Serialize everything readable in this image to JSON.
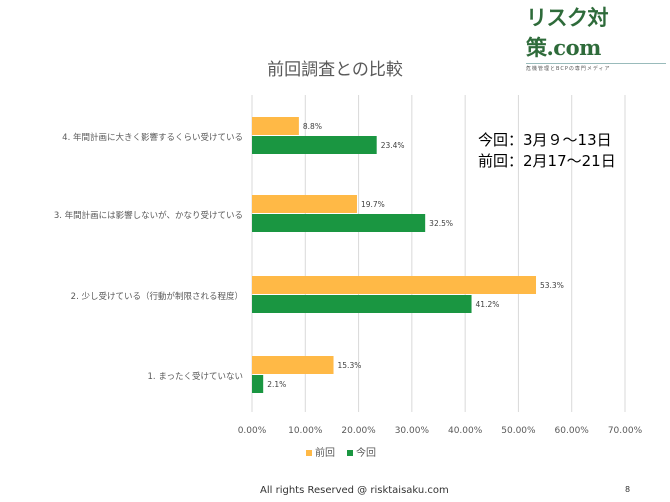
{
  "logo": {
    "main": "リスク対策.com",
    "sub": "危機管理とBCPの専門メディア"
  },
  "note": {
    "line1": "今回：3月９～13日",
    "line2": "前回：2月17～21日"
  },
  "footer": {
    "text": "All rights Reserved @ risktaisaku.com",
    "page": "8"
  },
  "chart_data": {
    "type": "bar",
    "orientation": "horizontal",
    "title": "前回調査との比較",
    "categories": [
      "4. 年間計画に大きく影響するくらい受けている",
      "3. 年間計画には影響しないが、かなり受けている",
      "2. 少し受けている（行動が制限される程度）",
      "1. まったく受けていない"
    ],
    "series": [
      {
        "name": "前回",
        "color": "#FFB946",
        "values": [
          8.8,
          19.7,
          53.3,
          15.3
        ],
        "labels": [
          "8.8%",
          "19.7%",
          "53.3%",
          "15.3%"
        ]
      },
      {
        "name": "今回",
        "color": "#1A9641",
        "values": [
          23.4,
          32.5,
          41.2,
          2.1
        ],
        "labels": [
          "23.4%",
          "32.5%",
          "41.2%",
          "2.1%"
        ]
      }
    ],
    "xlim": [
      0,
      70
    ],
    "xticks": [
      "0.00%",
      "10.00%",
      "20.00%",
      "30.00%",
      "40.00%",
      "50.00%",
      "60.00%",
      "70.00%"
    ],
    "grid": true,
    "legend": "bottom"
  }
}
